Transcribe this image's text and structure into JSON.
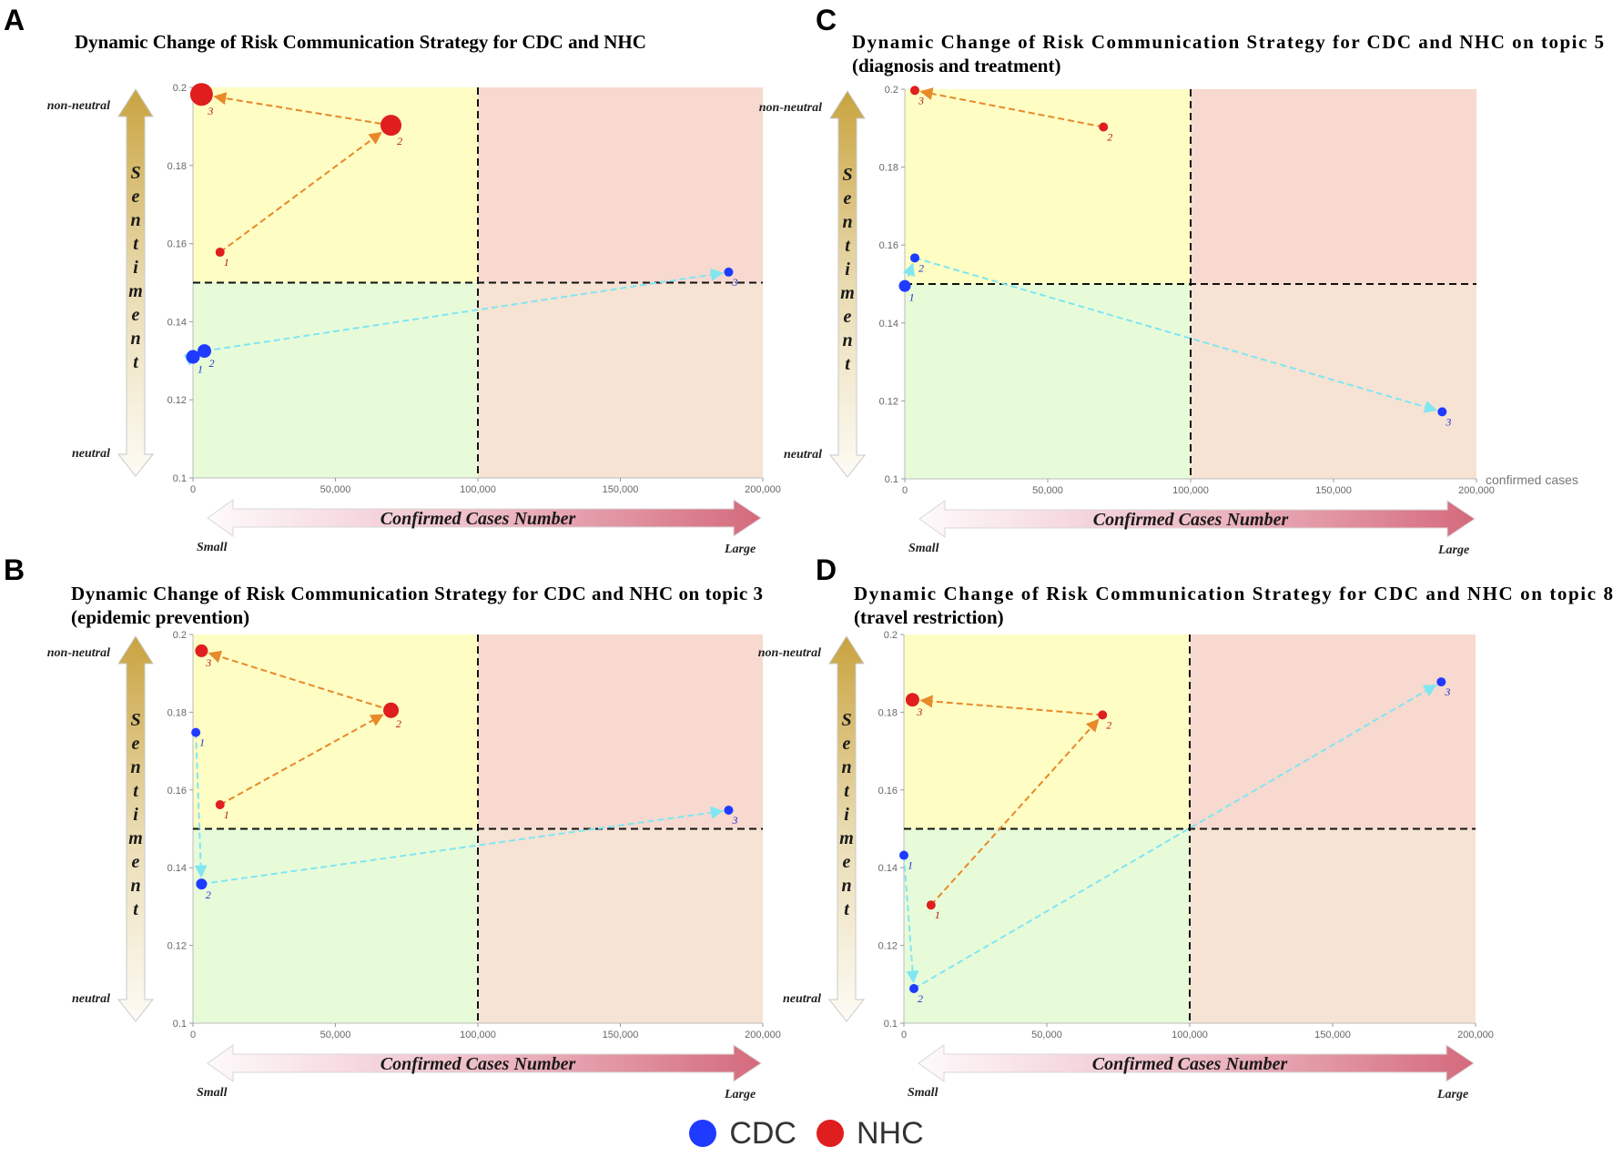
{
  "colors": {
    "cdc": "#1f3bff",
    "nhc": "#e01e1e",
    "cdc_line": "#7fe6f2",
    "nhc_line": "#e8892a",
    "q_top_left": "#fdfdc4",
    "q_top_right": "#f7d9cf",
    "q_bottom_left": "#e8fbd9",
    "q_bottom_right": "#f6e3d4"
  },
  "axis_words": {
    "y_title": "Sentiment",
    "y_top": "non-neutral",
    "y_bottom": "neutral",
    "x_title": "Confirmed Cases Number",
    "x_left": "Small",
    "x_right": "Large",
    "x_unit": "confirmed cases"
  },
  "legend": [
    {
      "label": "CDC",
      "color_key": "cdc"
    },
    {
      "label": "NHC",
      "color_key": "nhc"
    }
  ],
  "chart_data": [
    {
      "panel": "A",
      "type": "scatter",
      "title": [
        "Dynamic Change of Risk Communication Strategy for CDC and NHC"
      ],
      "xlim": [
        0,
        200000
      ],
      "ylim": [
        0.1,
        0.2
      ],
      "x_ticks": [
        "0",
        "50,000",
        "100,000",
        "150,000",
        "200,000"
      ],
      "y_ticks": [
        "0.1",
        "0.12",
        "0.14",
        "0.16",
        "0.18",
        "0.2"
      ],
      "threshold_x": 100000,
      "threshold_y": 0.15,
      "show_unit": false,
      "series": [
        {
          "name": "CDC",
          "points": [
            {
              "label": "1",
              "x": 0,
              "y": 0.131,
              "size": 1.5
            },
            {
              "label": "2",
              "x": 4000,
              "y": 0.1325,
              "size": 1.5
            },
            {
              "label": "3",
              "x": 188000,
              "y": 0.1527,
              "size": 1
            }
          ]
        },
        {
          "name": "NHC",
          "points": [
            {
              "label": "1",
              "x": 9500,
              "y": 0.1578,
              "size": 1
            },
            {
              "label": "2",
              "x": 69500,
              "y": 0.1903,
              "size": 2.3
            },
            {
              "label": "3",
              "x": 3000,
              "y": 0.1982,
              "size": 2.5
            }
          ]
        }
      ]
    },
    {
      "panel": "B",
      "type": "scatter",
      "title": [
        "Dynamic Change of Risk Communication Strategy for CDC and NHC on topic 3",
        "(epidemic prevention)"
      ],
      "xlim": [
        0,
        200000
      ],
      "ylim": [
        0.1,
        0.2
      ],
      "x_ticks": [
        "0",
        "50,000",
        "100,000",
        "150,000",
        "200,000"
      ],
      "y_ticks": [
        "0.1",
        "0.12",
        "0.14",
        "0.16",
        "0.18",
        "0.2"
      ],
      "threshold_x": 100000,
      "threshold_y": 0.15,
      "show_unit": false,
      "series": [
        {
          "name": "CDC",
          "points": [
            {
              "label": "1",
              "x": 1000,
              "y": 0.1748,
              "size": 1
            },
            {
              "label": "2",
              "x": 3000,
              "y": 0.1358,
              "size": 1.2
            },
            {
              "label": "3",
              "x": 188000,
              "y": 0.1548,
              "size": 1
            }
          ]
        },
        {
          "name": "NHC",
          "points": [
            {
              "label": "1",
              "x": 9500,
              "y": 0.1562,
              "size": 1
            },
            {
              "label": "2",
              "x": 69500,
              "y": 0.1805,
              "size": 1.7
            },
            {
              "label": "3",
              "x": 3000,
              "y": 0.1958,
              "size": 1.4
            }
          ]
        }
      ]
    },
    {
      "panel": "C",
      "type": "scatter",
      "title": [
        "Dynamic Change of Risk Communication Strategy for CDC and NHC on topic 5",
        "(diagnosis and treatment)"
      ],
      "xlim": [
        0,
        200000
      ],
      "ylim": [
        0.1,
        0.2
      ],
      "x_ticks": [
        "0",
        "50,000",
        "100,000",
        "150,000",
        "200,000"
      ],
      "y_ticks": [
        "0.1",
        "0.12",
        "0.14",
        "0.16",
        "0.18",
        "0.2"
      ],
      "threshold_x": 100000,
      "threshold_y": 0.15,
      "show_unit": true,
      "series": [
        {
          "name": "CDC",
          "points": [
            {
              "label": "1",
              "x": 0,
              "y": 0.1495,
              "size": 1.3
            },
            {
              "label": "2",
              "x": 3500,
              "y": 0.1567,
              "size": 1
            },
            {
              "label": "3",
              "x": 188000,
              "y": 0.1172,
              "size": 1
            }
          ]
        },
        {
          "name": "NHC",
          "points": [
            {
              "label": "2",
              "x": 69500,
              "y": 0.1903,
              "size": 1
            },
            {
              "label": "3",
              "x": 3500,
              "y": 0.1997,
              "size": 1
            }
          ]
        }
      ]
    },
    {
      "panel": "D",
      "type": "scatter",
      "title": [
        "Dynamic Change of Risk Communication Strategy for CDC and NHC on topic 8",
        "(travel restriction)"
      ],
      "xlim": [
        0,
        200000
      ],
      "ylim": [
        0.1,
        0.2
      ],
      "x_ticks": [
        "0",
        "50,000",
        "100,000",
        "150,000",
        "200,000"
      ],
      "y_ticks": [
        "0.1",
        "0.12",
        "0.14",
        "0.16",
        "0.18",
        "0.2"
      ],
      "threshold_x": 100000,
      "threshold_y": 0.15,
      "show_unit": false,
      "series": [
        {
          "name": "CDC",
          "points": [
            {
              "label": "1",
              "x": 0,
              "y": 0.1432,
              "size": 1
            },
            {
              "label": "2",
              "x": 3500,
              "y": 0.1089,
              "size": 1
            },
            {
              "label": "3",
              "x": 188000,
              "y": 0.1878,
              "size": 1
            }
          ]
        },
        {
          "name": "NHC",
          "points": [
            {
              "label": "1",
              "x": 9500,
              "y": 0.1304,
              "size": 1
            },
            {
              "label": "2",
              "x": 69500,
              "y": 0.1793,
              "size": 1
            },
            {
              "label": "3",
              "x": 3000,
              "y": 0.1832,
              "size": 1.5
            }
          ]
        }
      ]
    }
  ]
}
